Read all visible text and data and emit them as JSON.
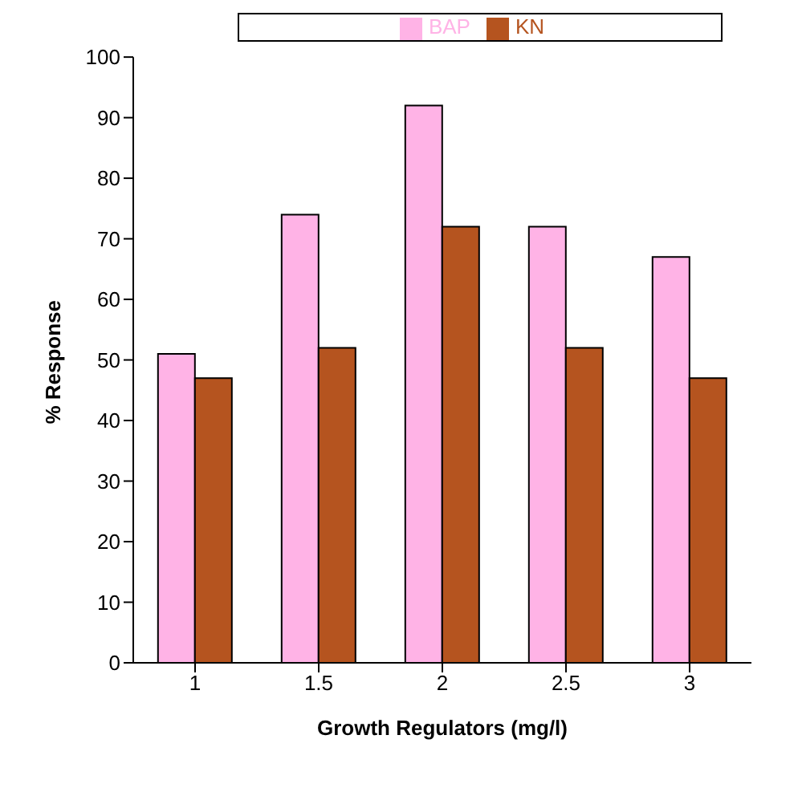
{
  "chart_data": {
    "type": "bar",
    "categories": [
      "1",
      "1.5",
      "2",
      "2.5",
      "3"
    ],
    "series": [
      {
        "name": "BAP",
        "color": "#ffb3e6",
        "values": [
          51,
          74,
          92,
          72,
          67
        ]
      },
      {
        "name": "KN",
        "color": "#b5541f",
        "values": [
          47,
          52,
          72,
          52,
          47
        ]
      }
    ],
    "xlabel": "Growth Regulators (mg/l)",
    "ylabel": "% Response",
    "ylim": [
      0,
      100
    ],
    "yticks": [
      0,
      10,
      20,
      30,
      40,
      50,
      60,
      70,
      80,
      90,
      100
    ],
    "legend": "top",
    "grid": false
  }
}
